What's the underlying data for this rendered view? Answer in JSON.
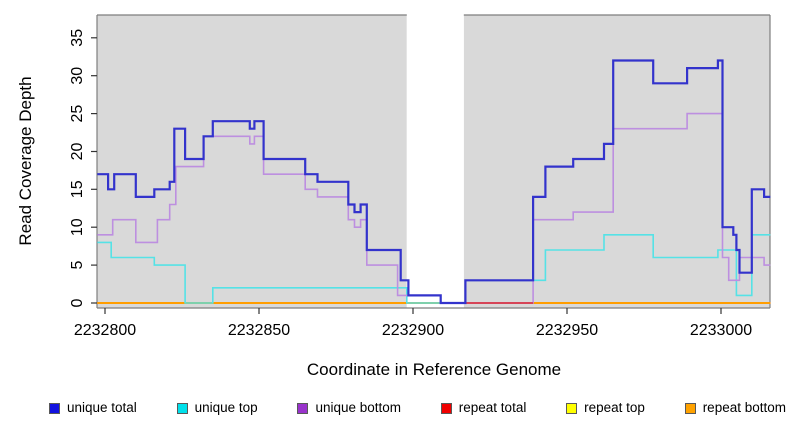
{
  "chart_data": {
    "type": "line",
    "subtype": "step",
    "title": "",
    "xlabel": "Coordinate in Reference Genome",
    "ylabel": "Read Coverage Depth",
    "x_tick_labels": [
      "2232800",
      "2232850",
      "2232900",
      "2232950",
      "2233000"
    ],
    "x_tick_values": [
      2232800,
      2232850,
      2232900,
      2232950,
      2233000
    ],
    "y_tick_labels": [
      "0",
      "5",
      "10",
      "15",
      "20",
      "25",
      "30",
      "35"
    ],
    "y_tick_values": [
      0,
      5,
      10,
      15,
      20,
      25,
      30,
      35
    ],
    "x_range": [
      2232797.5,
      2233016
    ],
    "y_range": [
      0,
      38
    ],
    "plot_background": "#d9d9d9",
    "gap_region": {
      "from": 2232898,
      "to": 2232916.5,
      "color": "#ffffff"
    },
    "legend_position": "bottom",
    "grid": false,
    "x_end": 2233016,
    "series": [
      {
        "name": "unique total",
        "line_color": "#3333cc",
        "legend_color": "#1212e0",
        "line_width": 2.2,
        "points": [
          [
            2232797.5,
            17
          ],
          [
            2232801,
            15
          ],
          [
            2232803,
            17
          ],
          [
            2232810,
            14
          ],
          [
            2232816,
            15
          ],
          [
            2232821,
            16
          ],
          [
            2232822.5,
            23
          ],
          [
            2232826,
            19
          ],
          [
            2232832,
            22
          ],
          [
            2232835,
            24
          ],
          [
            2232847,
            23
          ],
          [
            2232848.5,
            24
          ],
          [
            2232851.5,
            19
          ],
          [
            2232865,
            17
          ],
          [
            2232869,
            16
          ],
          [
            2232879,
            13
          ],
          [
            2232881,
            12
          ],
          [
            2232883,
            13
          ],
          [
            2232885,
            7
          ],
          [
            2232896,
            3
          ],
          [
            2232898.5,
            1
          ],
          [
            2232909,
            0
          ],
          [
            2232917,
            3
          ],
          [
            2232939,
            14
          ],
          [
            2232943,
            18
          ],
          [
            2232952,
            19
          ],
          [
            2232962,
            21
          ],
          [
            2232965,
            32
          ],
          [
            2232978,
            29
          ],
          [
            2232989,
            31
          ],
          [
            2232999,
            32
          ],
          [
            2233000.5,
            10
          ],
          [
            2233004,
            9
          ],
          [
            2233005,
            7
          ],
          [
            2233006,
            4
          ],
          [
            2233010,
            15
          ],
          [
            2233014,
            14
          ]
        ]
      },
      {
        "name": "unique top",
        "line_color": "#55e2e6",
        "legend_color": "#00e0ea",
        "line_width": 1.6,
        "points": [
          [
            2232797.5,
            8
          ],
          [
            2232802,
            6
          ],
          [
            2232816,
            5
          ],
          [
            2232826,
            0
          ],
          [
            2232835,
            2
          ],
          [
            2232898,
            0
          ],
          [
            2232917,
            3
          ],
          [
            2232943,
            7
          ],
          [
            2232962,
            9
          ],
          [
            2232978,
            6
          ],
          [
            2232999,
            7
          ],
          [
            2233005,
            1
          ],
          [
            2233010,
            9
          ]
        ]
      },
      {
        "name": "unique bottom",
        "line_color": "#bd8fe0",
        "legend_color": "#9933cc",
        "line_width": 1.6,
        "points": [
          [
            2232797.5,
            9
          ],
          [
            2232802.5,
            11
          ],
          [
            2232810,
            8
          ],
          [
            2232817,
            11
          ],
          [
            2232821,
            13
          ],
          [
            2232823,
            18
          ],
          [
            2232832,
            22
          ],
          [
            2232847,
            21
          ],
          [
            2232848.5,
            22
          ],
          [
            2232851.5,
            17
          ],
          [
            2232865,
            15
          ],
          [
            2232869,
            14
          ],
          [
            2232879,
            11
          ],
          [
            2232881,
            10
          ],
          [
            2232883,
            11
          ],
          [
            2232885,
            5
          ],
          [
            2232895,
            1
          ],
          [
            2232909,
            0
          ],
          [
            2232939,
            11
          ],
          [
            2232952,
            12
          ],
          [
            2232965,
            23
          ],
          [
            2232989,
            25
          ],
          [
            2233000.5,
            6
          ],
          [
            2233002.5,
            3
          ],
          [
            2233006,
            6
          ],
          [
            2233014,
            5
          ]
        ]
      },
      {
        "name": "repeat total",
        "line_color": "#d42a50",
        "legend_color": "#f00000",
        "line_width": 1.5,
        "points": [
          [
            2232797.5,
            0
          ]
        ],
        "visible_segment": [
          2232916.5,
          2232939
        ]
      },
      {
        "name": "repeat top",
        "line_color": "#ffff00",
        "legend_color": "#ffff00",
        "line_width": 1.5,
        "points": [
          [
            2232797.5,
            0
          ]
        ]
      },
      {
        "name": "repeat bottom",
        "line_color": "#ff9d00",
        "legend_color": "#ffa200",
        "line_width": 1.9,
        "points": [
          [
            2232797.5,
            0
          ]
        ]
      }
    ]
  }
}
